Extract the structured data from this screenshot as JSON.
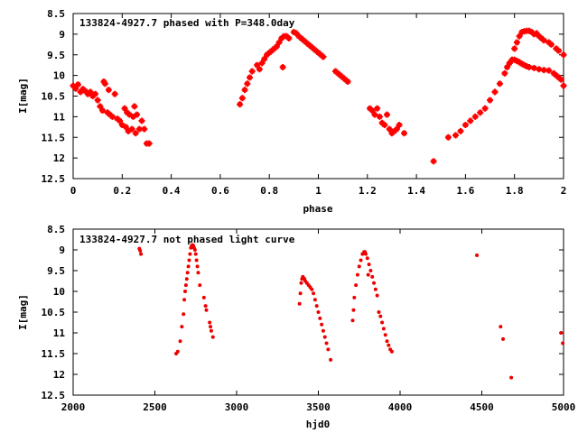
{
  "chart_data": [
    {
      "type": "scatter",
      "title": "133824-4927.7 phased with P=348.0day",
      "xlabel": "phase",
      "ylabel": "I[mag]",
      "xlim": [
        0,
        2
      ],
      "ylim": [
        12.5,
        8.5
      ],
      "y_inverted": true,
      "xticks": [
        "0",
        "0.2",
        "0.4",
        "0.6",
        "0.8",
        "1",
        "1.2",
        "1.4",
        "1.6",
        "1.8",
        "2"
      ],
      "yticks": [
        "8.5",
        "9",
        "9.5",
        "10",
        "10.5",
        "11",
        "11.5",
        "12",
        "12.5"
      ],
      "marker": "filled-square",
      "color": "#ff0000",
      "points": [
        [
          0.0,
          10.25
        ],
        [
          0.01,
          10.32
        ],
        [
          0.02,
          10.22
        ],
        [
          0.03,
          10.4
        ],
        [
          0.04,
          10.33
        ],
        [
          0.05,
          10.38
        ],
        [
          0.06,
          10.45
        ],
        [
          0.07,
          10.4
        ],
        [
          0.08,
          10.5
        ],
        [
          0.09,
          10.45
        ],
        [
          0.1,
          10.6
        ],
        [
          0.11,
          10.75
        ],
        [
          0.12,
          10.85
        ],
        [
          0.125,
          10.15
        ],
        [
          0.13,
          10.2
        ],
        [
          0.14,
          10.9
        ],
        [
          0.145,
          10.35
        ],
        [
          0.15,
          10.95
        ],
        [
          0.16,
          11.0
        ],
        [
          0.17,
          10.45
        ],
        [
          0.18,
          11.05
        ],
        [
          0.19,
          11.1
        ],
        [
          0.2,
          11.2
        ],
        [
          0.21,
          10.8
        ],
        [
          0.215,
          11.25
        ],
        [
          0.22,
          10.9
        ],
        [
          0.225,
          11.35
        ],
        [
          0.23,
          10.95
        ],
        [
          0.24,
          11.3
        ],
        [
          0.245,
          11.0
        ],
        [
          0.25,
          10.75
        ],
        [
          0.255,
          11.4
        ],
        [
          0.26,
          10.95
        ],
        [
          0.27,
          11.3
        ],
        [
          0.28,
          11.1
        ],
        [
          0.29,
          11.3
        ],
        [
          0.3,
          11.65
        ],
        [
          0.31,
          11.65
        ],
        [
          0.68,
          10.7
        ],
        [
          0.69,
          10.55
        ],
        [
          0.7,
          10.35
        ],
        [
          0.71,
          10.2
        ],
        [
          0.72,
          10.05
        ],
        [
          0.73,
          9.9
        ],
        [
          0.75,
          9.75
        ],
        [
          0.76,
          9.85
        ],
        [
          0.77,
          9.7
        ],
        [
          0.78,
          9.6
        ],
        [
          0.79,
          9.5
        ],
        [
          0.8,
          9.45
        ],
        [
          0.81,
          9.4
        ],
        [
          0.82,
          9.35
        ],
        [
          0.83,
          9.3
        ],
        [
          0.84,
          9.2
        ],
        [
          0.85,
          9.1
        ],
        [
          0.855,
          9.8
        ],
        [
          0.86,
          9.05
        ],
        [
          0.87,
          9.05
        ],
        [
          0.88,
          9.1
        ],
        [
          0.9,
          8.95
        ],
        [
          0.91,
          8.98
        ],
        [
          0.92,
          9.05
        ],
        [
          0.93,
          9.1
        ],
        [
          0.94,
          9.15
        ],
        [
          0.95,
          9.2
        ],
        [
          0.96,
          9.25
        ],
        [
          0.97,
          9.3
        ],
        [
          0.98,
          9.35
        ],
        [
          0.99,
          9.4
        ],
        [
          1.0,
          9.45
        ],
        [
          1.01,
          9.5
        ],
        [
          1.02,
          9.55
        ],
        [
          1.07,
          9.9
        ],
        [
          1.08,
          9.95
        ],
        [
          1.09,
          10.0
        ],
        [
          1.1,
          10.05
        ],
        [
          1.11,
          10.1
        ],
        [
          1.12,
          10.15
        ],
        [
          1.21,
          10.8
        ],
        [
          1.22,
          10.85
        ],
        [
          1.23,
          10.95
        ],
        [
          1.24,
          10.8
        ],
        [
          1.25,
          11.0
        ],
        [
          1.26,
          11.15
        ],
        [
          1.27,
          11.2
        ],
        [
          1.28,
          10.95
        ],
        [
          1.29,
          11.3
        ],
        [
          1.3,
          11.4
        ],
        [
          1.31,
          11.35
        ],
        [
          1.32,
          11.3
        ],
        [
          1.33,
          11.2
        ],
        [
          1.35,
          11.4
        ],
        [
          1.47,
          12.08
        ],
        [
          1.53,
          11.5
        ],
        [
          1.56,
          11.45
        ],
        [
          1.58,
          11.35
        ],
        [
          1.6,
          11.2
        ],
        [
          1.62,
          11.1
        ],
        [
          1.64,
          11.0
        ],
        [
          1.66,
          10.9
        ],
        [
          1.68,
          10.8
        ],
        [
          1.7,
          10.6
        ],
        [
          1.72,
          10.4
        ],
        [
          1.74,
          10.2
        ],
        [
          1.76,
          9.95
        ],
        [
          1.78,
          9.7
        ],
        [
          1.8,
          9.35
        ],
        [
          1.81,
          9.2
        ],
        [
          1.82,
          9.05
        ],
        [
          1.83,
          8.95
        ],
        [
          1.84,
          8.93
        ],
        [
          1.85,
          8.92
        ],
        [
          1.86,
          8.92
        ],
        [
          1.87,
          8.95
        ],
        [
          1.88,
          9.0
        ],
        [
          1.89,
          8.98
        ],
        [
          1.9,
          9.05
        ],
        [
          1.91,
          9.1
        ],
        [
          1.92,
          9.15
        ],
        [
          1.94,
          9.2
        ],
        [
          1.95,
          9.25
        ],
        [
          1.97,
          9.35
        ],
        [
          1.98,
          9.4
        ],
        [
          2.0,
          9.5
        ],
        [
          1.77,
          9.8
        ],
        [
          1.78,
          9.7
        ],
        [
          1.79,
          9.62
        ],
        [
          1.8,
          9.62
        ],
        [
          1.81,
          9.65
        ],
        [
          1.82,
          9.68
        ],
        [
          1.83,
          9.72
        ],
        [
          1.84,
          9.75
        ],
        [
          1.85,
          9.78
        ],
        [
          1.86,
          9.8
        ],
        [
          1.88,
          9.82
        ],
        [
          1.9,
          9.85
        ],
        [
          1.92,
          9.87
        ],
        [
          1.94,
          9.88
        ],
        [
          1.96,
          9.95
        ],
        [
          1.97,
          10.0
        ],
        [
          1.98,
          10.05
        ],
        [
          1.99,
          10.1
        ],
        [
          2.0,
          10.25
        ]
      ]
    },
    {
      "type": "scatter",
      "title": "133824-4927.7 not phased light curve",
      "xlabel": "hjd0",
      "ylabel": "I[mag]",
      "xlim": [
        2000,
        5000
      ],
      "ylim": [
        12.5,
        8.5
      ],
      "y_inverted": true,
      "xticks": [
        "2000",
        "2500",
        "3000",
        "3500",
        "4000",
        "4500",
        "5000"
      ],
      "yticks": [
        "8.5",
        "9",
        "9.5",
        "10",
        "10.5",
        "11",
        "11.5",
        "12",
        "12.5"
      ],
      "marker": "filled-circle",
      "color": "#ee0000",
      "points": [
        [
          2405,
          8.97
        ],
        [
          2410,
          9.02
        ],
        [
          2415,
          9.1
        ],
        [
          2630,
          11.5
        ],
        [
          2640,
          11.45
        ],
        [
          2655,
          11.2
        ],
        [
          2665,
          10.85
        ],
        [
          2675,
          10.55
        ],
        [
          2680,
          10.2
        ],
        [
          2685,
          10.0
        ],
        [
          2690,
          9.85
        ],
        [
          2695,
          9.7
        ],
        [
          2700,
          9.55
        ],
        [
          2705,
          9.4
        ],
        [
          2710,
          9.25
        ],
        [
          2715,
          9.1
        ],
        [
          2720,
          8.95
        ],
        [
          2725,
          8.9
        ],
        [
          2730,
          8.88
        ],
        [
          2735,
          8.9
        ],
        [
          2740,
          8.95
        ],
        [
          2745,
          9.0
        ],
        [
          2750,
          9.1
        ],
        [
          2755,
          9.25
        ],
        [
          2760,
          9.4
        ],
        [
          2765,
          9.55
        ],
        [
          2775,
          9.85
        ],
        [
          2800,
          10.15
        ],
        [
          2810,
          10.35
        ],
        [
          2815,
          10.45
        ],
        [
          2835,
          10.75
        ],
        [
          2840,
          10.85
        ],
        [
          2845,
          10.95
        ],
        [
          2855,
          11.1
        ],
        [
          3385,
          10.3
        ],
        [
          3390,
          10.05
        ],
        [
          3395,
          9.8
        ],
        [
          3400,
          9.7
        ],
        [
          3405,
          9.65
        ],
        [
          3410,
          9.68
        ],
        [
          3415,
          9.7
        ],
        [
          3420,
          9.75
        ],
        [
          3430,
          9.8
        ],
        [
          3440,
          9.85
        ],
        [
          3450,
          9.9
        ],
        [
          3460,
          9.95
        ],
        [
          3470,
          10.05
        ],
        [
          3480,
          10.2
        ],
        [
          3490,
          10.35
        ],
        [
          3500,
          10.5
        ],
        [
          3510,
          10.65
        ],
        [
          3520,
          10.8
        ],
        [
          3530,
          10.95
        ],
        [
          3540,
          11.1
        ],
        [
          3550,
          11.25
        ],
        [
          3560,
          11.4
        ],
        [
          3575,
          11.65
        ],
        [
          3710,
          10.7
        ],
        [
          3715,
          10.45
        ],
        [
          3720,
          10.15
        ],
        [
          3730,
          9.85
        ],
        [
          3740,
          9.6
        ],
        [
          3750,
          9.4
        ],
        [
          3760,
          9.25
        ],
        [
          3770,
          9.1
        ],
        [
          3780,
          9.05
        ],
        [
          3785,
          9.05
        ],
        [
          3790,
          9.1
        ],
        [
          3800,
          9.2
        ],
        [
          3805,
          9.6
        ],
        [
          3810,
          9.35
        ],
        [
          3820,
          9.5
        ],
        [
          3830,
          9.65
        ],
        [
          3840,
          9.8
        ],
        [
          3850,
          9.95
        ],
        [
          3860,
          10.1
        ],
        [
          3870,
          10.5
        ],
        [
          3880,
          10.6
        ],
        [
          3890,
          10.75
        ],
        [
          3900,
          10.9
        ],
        [
          3910,
          11.05
        ],
        [
          3920,
          11.2
        ],
        [
          3930,
          11.3
        ],
        [
          3940,
          11.4
        ],
        [
          3950,
          11.45
        ],
        [
          4470,
          9.13
        ],
        [
          4615,
          10.85
        ],
        [
          4630,
          11.15
        ],
        [
          4680,
          12.08
        ],
        [
          4985,
          11.0
        ],
        [
          4995,
          11.25
        ]
      ]
    }
  ]
}
